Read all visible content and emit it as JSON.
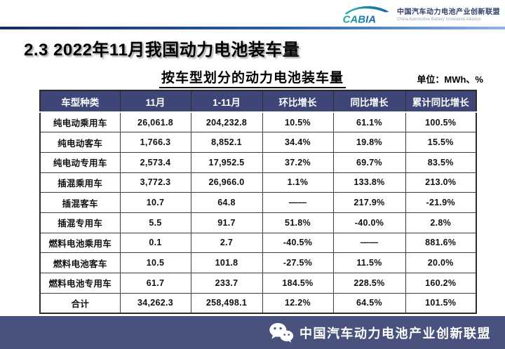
{
  "page_title": "2.3 2022年11月我国动力电池装车量",
  "logo": {
    "abbr": "CABIA",
    "org_cn": "中国汽车动力电池产业创新联盟",
    "org_en": "China Automotive Battery Innovation Alliance"
  },
  "table_section": {
    "title": "按车型划分的动力电池装车量",
    "unit_label": "单位：MWh、%"
  },
  "chart_data": {
    "type": "table",
    "title": "按车型划分的动力电池装车量",
    "unit": "MWh、%",
    "columns": [
      "车型种类",
      "11月",
      "1-11月",
      "环比增长",
      "同比增长",
      "累计同比增长"
    ],
    "rows": [
      [
        "纯电动乘用车",
        "26,061.8",
        "204,232.8",
        "10.5%",
        "61.1%",
        "100.5%"
      ],
      [
        "纯电动客车",
        "1,766.3",
        "8,852.1",
        "34.4%",
        "19.8%",
        "15.5%"
      ],
      [
        "纯电动专用车",
        "2,573.4",
        "17,952.5",
        "37.2%",
        "69.7%",
        "83.5%"
      ],
      [
        "插混乘用车",
        "3,772.3",
        "26,966.0",
        "1.1%",
        "133.8%",
        "213.0%"
      ],
      [
        "插混客车",
        "10.7",
        "64.8",
        "——",
        "217.9%",
        "-21.9%"
      ],
      [
        "插混专用车",
        "5.5",
        "91.7",
        "51.8%",
        "-40.0%",
        "2.8%"
      ],
      [
        "燃料电池乘用车",
        "0.1",
        "2.7",
        "-40.5%",
        "——",
        "881.6%"
      ],
      [
        "燃料电池客车",
        "10.5",
        "101.8",
        "-27.5%",
        "11.5%",
        "20.0%"
      ],
      [
        "燃料电池专用车",
        "61.7",
        "233.7",
        "184.5%",
        "228.5%",
        "160.2%"
      ],
      [
        "合计",
        "34,262.3",
        "258,498.1",
        "12.2%",
        "64.5%",
        "101.5%"
      ]
    ]
  },
  "footer": {
    "org": "中国汽车动力电池产业创新联盟"
  },
  "colors": {
    "header_bg": "#3D4676",
    "footer_bg": "#48527D",
    "divider_gradient_start": "#142D5B",
    "divider_gradient_end": "#8FB4E3",
    "logo_teal": "#1FAE9E",
    "logo_blue": "#1B61B4"
  }
}
